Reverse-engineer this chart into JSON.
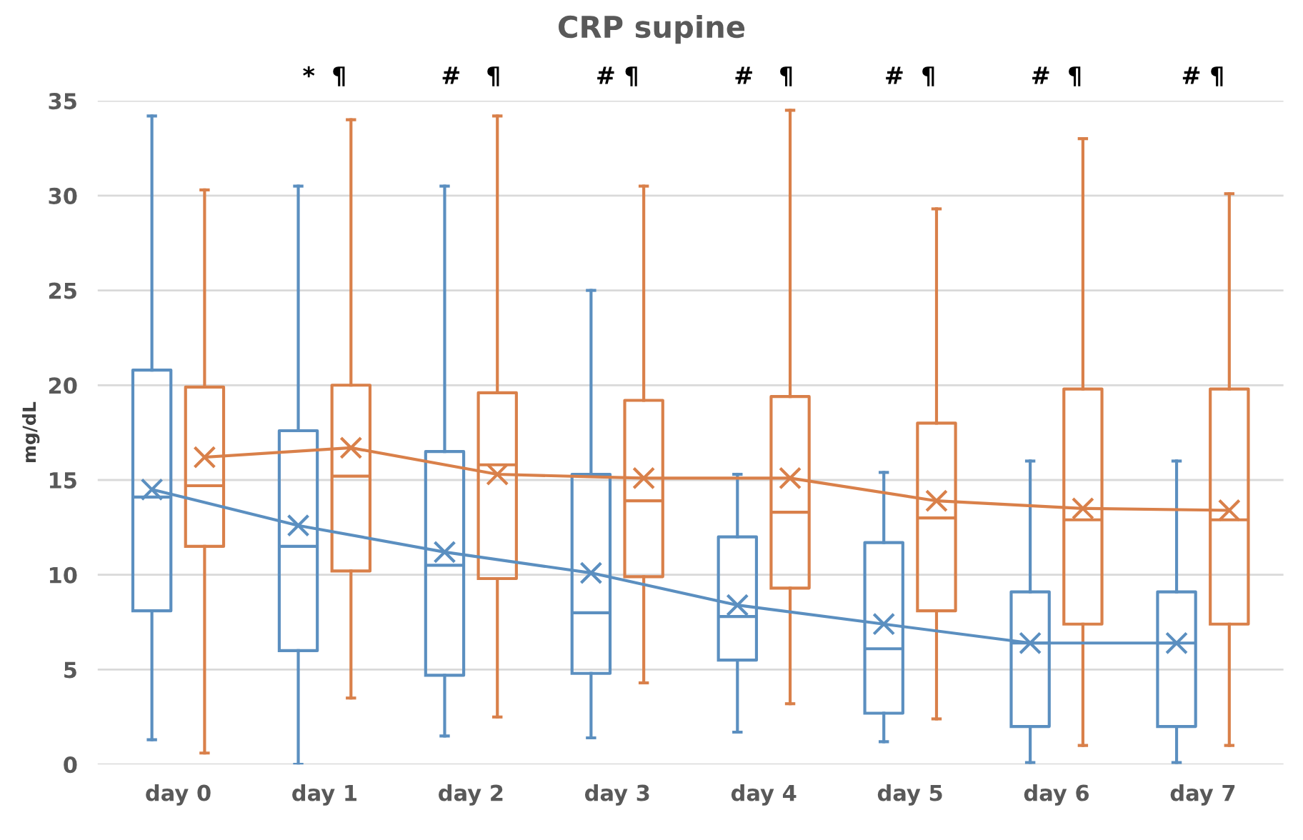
{
  "chart_data": {
    "type": "box",
    "title": "CRP supine",
    "ylabel": "mg/dL",
    "categories": [
      "day 0",
      "day 1",
      "day 2",
      "day 3",
      "day 4",
      "day 5",
      "day 6",
      "day 7"
    ],
    "ylim": [
      0,
      35
    ],
    "yticks": [
      0,
      5,
      10,
      15,
      20,
      25,
      30,
      35
    ],
    "grid": "y",
    "legend": false,
    "line_style": "solid",
    "series": [
      {
        "color": "#5b8fc0",
        "boxes": [
          {
            "low": 1.3,
            "q1": 8.1,
            "median": 14.1,
            "q3": 20.8,
            "high": 34.2,
            "mean": 14.5
          },
          {
            "low": 0,
            "q1": 6.0,
            "median": 11.5,
            "q3": 17.6,
            "high": 30.5,
            "mean": 12.6
          },
          {
            "low": 1.5,
            "q1": 4.7,
            "median": 10.5,
            "q3": 16.5,
            "high": 30.5,
            "mean": 11.2
          },
          {
            "low": 1.4,
            "q1": 4.8,
            "median": 8.0,
            "q3": 15.3,
            "high": 25.0,
            "mean": 10.1
          },
          {
            "low": 1.7,
            "q1": 5.5,
            "median": 7.8,
            "q3": 12.0,
            "high": 15.3,
            "mean": 8.4
          },
          {
            "low": 1.2,
            "q1": 2.7,
            "median": 6.1,
            "q3": 11.7,
            "high": 15.4,
            "mean": 7.4
          },
          {
            "low": 0.1,
            "q1": 2.0,
            "median": 6.4,
            "q3": 9.1,
            "high": 16.0,
            "mean": 6.4
          },
          {
            "low": 0.1,
            "q1": 2.0,
            "median": 6.4,
            "q3": 9.1,
            "high": 16.0,
            "mean": 6.4
          }
        ]
      },
      {
        "color": "#d9804a",
        "boxes": [
          {
            "low": 0.6,
            "q1": 11.5,
            "median": 14.7,
            "q3": 19.9,
            "high": 30.3,
            "mean": 16.2
          },
          {
            "low": 3.5,
            "q1": 10.2,
            "median": 15.2,
            "q3": 20.0,
            "high": 34.0,
            "mean": 16.7
          },
          {
            "low": 2.5,
            "q1": 9.8,
            "median": 15.8,
            "q3": 19.6,
            "high": 34.2,
            "mean": 15.3
          },
          {
            "low": 4.3,
            "q1": 9.9,
            "median": 13.9,
            "q3": 19.2,
            "high": 30.5,
            "mean": 15.1
          },
          {
            "low": 3.2,
            "q1": 9.3,
            "median": 13.3,
            "q3": 19.4,
            "high": 34.5,
            "mean": 15.1
          },
          {
            "low": 2.4,
            "q1": 8.1,
            "median": 13.0,
            "q3": 18.0,
            "high": 29.3,
            "mean": 13.9
          },
          {
            "low": 1.0,
            "q1": 7.4,
            "median": 12.9,
            "q3": 19.8,
            "high": 33.0,
            "mean": 13.5
          },
          {
            "low": 1.0,
            "q1": 7.4,
            "median": 12.9,
            "q3": 19.8,
            "high": 30.1,
            "mean": 13.4
          }
        ]
      },
      {
        "type": "line",
        "color": "#5b8fc0",
        "values": [
          14.5,
          12.6,
          11.2,
          10.1,
          8.4,
          7.4,
          6.4,
          6.4
        ]
      },
      {
        "type": "line",
        "color": "#d9804a",
        "values": [
          16.2,
          16.7,
          15.3,
          15.1,
          15.1,
          13.9,
          13.5,
          13.4
        ]
      }
    ],
    "annotations": [
      "*  ¶",
      "#   ¶",
      "# ¶",
      "#   ¶",
      "#  ¶",
      "#  ¶",
      "# ¶"
    ]
  }
}
